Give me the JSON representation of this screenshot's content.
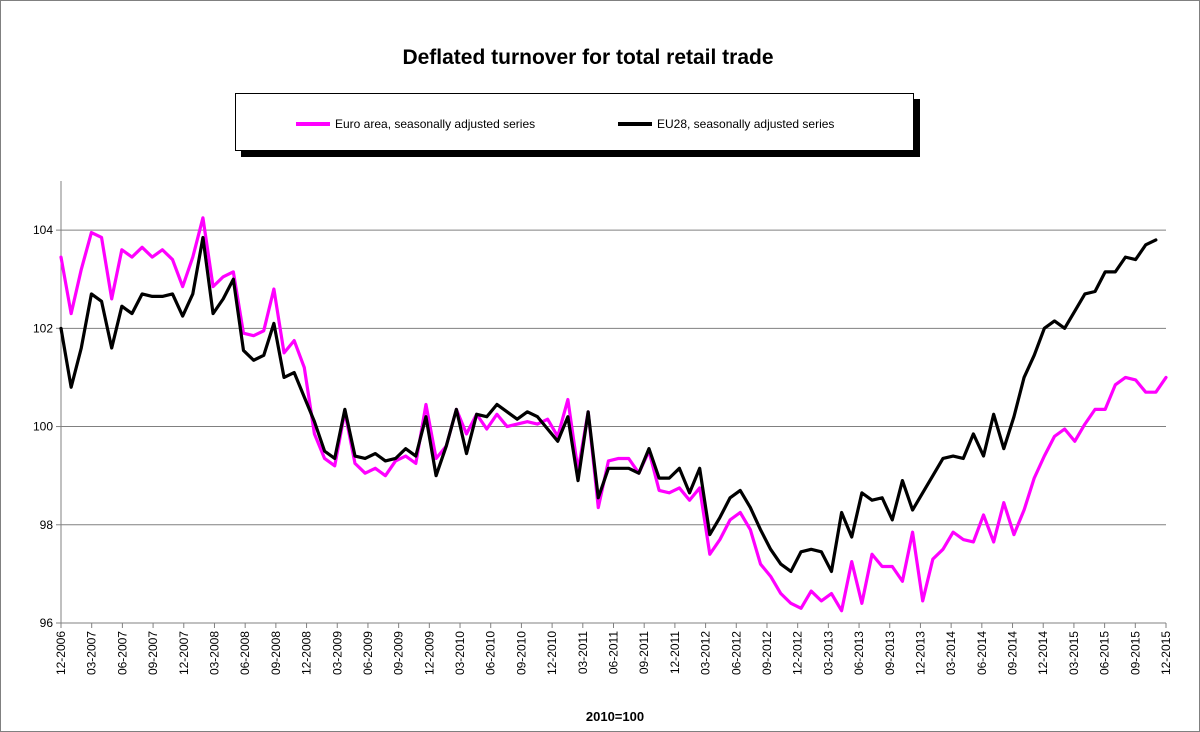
{
  "chart_data": {
    "type": "line",
    "title": "Deflated turnover for total retail trade",
    "xlabel": "2010=100",
    "ylabel": "",
    "ylim": [
      96,
      105
    ],
    "yticks": [
      96,
      98,
      100,
      102,
      104
    ],
    "grid": true,
    "legend_position": "top",
    "x_tick_labels": [
      "12-2006",
      "03-2007",
      "06-2007",
      "09-2007",
      "12-2007",
      "03-2008",
      "06-2008",
      "09-2008",
      "12-2008",
      "03-2009",
      "06-2009",
      "09-2009",
      "12-2009",
      "03-2010",
      "06-2010",
      "09-2010",
      "12-2010",
      "03-2011",
      "06-2011",
      "09-2011",
      "12-2011",
      "03-2012",
      "06-2012",
      "09-2012",
      "12-2012",
      "03-2013",
      "06-2013",
      "09-2013",
      "12-2013",
      "03-2014",
      "06-2014",
      "09-2014",
      "12-2014",
      "03-2015",
      "06-2015",
      "09-2015",
      "12-2015"
    ],
    "x_start": "12-2006",
    "x_end": "12-2015",
    "series": [
      {
        "name": "Euro area, seasonally adjusted series",
        "color": "#ff00ff",
        "values": [
          103.45,
          102.3,
          103.2,
          103.95,
          103.85,
          102.6,
          103.6,
          103.45,
          103.65,
          103.45,
          103.6,
          103.4,
          102.85,
          103.45,
          104.25,
          102.85,
          103.05,
          103.15,
          101.9,
          101.85,
          101.95,
          102.8,
          101.5,
          101.75,
          101.2,
          99.85,
          99.35,
          99.2,
          100.3,
          99.25,
          99.05,
          99.15,
          99.0,
          99.3,
          99.4,
          99.25,
          100.45,
          99.35,
          99.6,
          100.35,
          99.85,
          100.25,
          99.95,
          100.25,
          100.0,
          100.05,
          100.1,
          100.05,
          100.15,
          99.8,
          100.55,
          99.1,
          100.3,
          98.35,
          99.3,
          99.35,
          99.35,
          99.05,
          99.5,
          98.7,
          98.65,
          98.75,
          98.5,
          98.75,
          97.4,
          97.7,
          98.1,
          98.25,
          97.9,
          97.2,
          96.95,
          96.6,
          96.4,
          96.3,
          96.65,
          96.45,
          96.6,
          96.25,
          97.25,
          96.4,
          97.4,
          97.15,
          97.15,
          96.85,
          97.85,
          96.45,
          97.3,
          97.5,
          97.85,
          97.7,
          97.65,
          98.2,
          97.65,
          98.45,
          97.8,
          98.3,
          98.95,
          99.4,
          99.8,
          99.95,
          99.7,
          100.05,
          100.35,
          100.35,
          100.85,
          101.0,
          100.95,
          100.7,
          100.7,
          101.0
        ]
      },
      {
        "name": "EU28, seasonally adjusted series",
        "color": "#000000",
        "values": [
          102.0,
          100.8,
          101.6,
          102.7,
          102.55,
          101.6,
          102.45,
          102.3,
          102.7,
          102.65,
          102.65,
          102.7,
          102.25,
          102.7,
          103.85,
          102.3,
          102.6,
          103.0,
          101.55,
          101.35,
          101.45,
          102.1,
          101.0,
          101.1,
          100.6,
          100.1,
          99.5,
          99.35,
          100.35,
          99.4,
          99.35,
          99.45,
          99.3,
          99.35,
          99.55,
          99.4,
          100.2,
          99.0,
          99.6,
          100.35,
          99.45,
          100.25,
          100.2,
          100.45,
          100.3,
          100.15,
          100.3,
          100.2,
          99.95,
          99.7,
          100.2,
          98.9,
          100.3,
          98.55,
          99.15,
          99.15,
          99.15,
          99.05,
          99.55,
          98.95,
          98.95,
          99.15,
          98.65,
          99.15,
          97.8,
          98.15,
          98.55,
          98.7,
          98.35,
          97.9,
          97.5,
          97.2,
          97.05,
          97.45,
          97.5,
          97.45,
          97.05,
          98.25,
          97.75,
          98.65,
          98.5,
          98.55,
          98.1,
          98.9,
          98.3,
          98.65,
          99.0,
          99.35,
          99.4,
          99.35,
          99.85,
          99.4,
          100.25,
          99.55,
          100.2,
          101.0,
          101.45,
          102.0,
          102.15,
          102.0,
          102.35,
          102.7,
          102.75,
          103.15,
          103.15,
          103.45,
          103.4,
          103.7,
          103.8
        ]
      }
    ]
  }
}
